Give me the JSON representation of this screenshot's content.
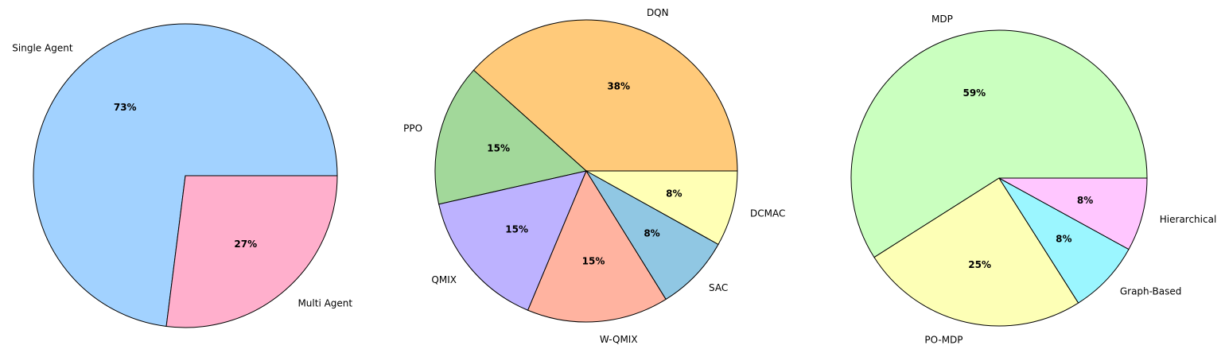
{
  "chart_data": [
    {
      "type": "pie",
      "title": "",
      "labels": [
        "Single Agent",
        "Multi Agent"
      ],
      "values": [
        73,
        27
      ],
      "percent_labels": [
        "73%",
        "27%"
      ],
      "colors": [
        "#a2d2ff",
        "#ffafcc"
      ]
    },
    {
      "type": "pie",
      "title": "",
      "labels": [
        "DQN",
        "PPO",
        "QMIX",
        "W-QMIX",
        "SAC",
        "DCMAC"
      ],
      "values": [
        38,
        15,
        15,
        15,
        8,
        8
      ],
      "percent_labels": [
        "38%",
        "15%",
        "15%",
        "15%",
        "8%",
        "8%"
      ],
      "colors": [
        "#ffca7a",
        "#a2d89a",
        "#bdb2ff",
        "#ffb3a0",
        "#90c7e3",
        "#ffffb5"
      ]
    },
    {
      "type": "pie",
      "title": "",
      "labels": [
        "MDP",
        "PO-MDP",
        "Graph-Based",
        "Hierarchical"
      ],
      "values": [
        59,
        25,
        8,
        8
      ],
      "percent_labels": [
        "59%",
        "25%",
        "8%",
        "8%"
      ],
      "colors": [
        "#caffbf",
        "#fdffb6",
        "#9bf6ff",
        "#ffc6ff"
      ]
    }
  ]
}
